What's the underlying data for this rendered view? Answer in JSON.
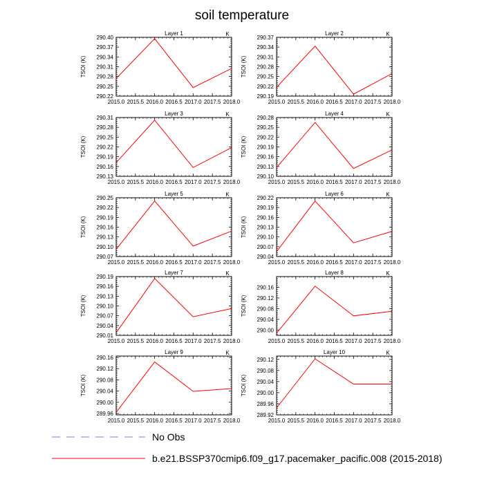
{
  "title": "soil temperature",
  "legend": {
    "no_obs_label": "No Obs",
    "model_label": "b.e21.BSSP370cmip6.f09_g17.pacemaker_pacific.008 (2015-2018)",
    "no_obs_color": "#7b7bdc",
    "model_color": "#ff0000"
  },
  "chart_data": [
    {
      "type": "line",
      "title": "Layer 1",
      "units": "K",
      "ylabel": "TSOI  (K)",
      "x": [
        2015.0,
        2016.0,
        2017.0,
        2018.0
      ],
      "values": [
        290.274,
        290.396,
        290.246,
        290.305
      ],
      "xlim": [
        2015.0,
        2018.0
      ],
      "ylim": [
        290.22,
        290.4
      ],
      "yticks": [
        "290.40",
        "290.37",
        "290.34",
        "290.31",
        "290.28",
        "290.25",
        "290.22"
      ],
      "xticks": [
        "2015.0",
        "2015.5",
        "2016.0",
        "2016.5",
        "2017.0",
        "2017.5",
        "2018.0"
      ]
    },
    {
      "type": "line",
      "title": "Layer 2",
      "units": "K",
      "ylabel": "TSOI  (K)",
      "x": [
        2015.0,
        2016.0,
        2017.0,
        2018.0
      ],
      "values": [
        290.217,
        290.343,
        290.196,
        290.259
      ],
      "xlim": [
        2015.0,
        2018.0
      ],
      "ylim": [
        290.19,
        290.37
      ],
      "yticks": [
        "290.37",
        "290.34",
        "290.31",
        "290.28",
        "290.25",
        "290.22",
        "290.19"
      ],
      "xticks": [
        "2015.0",
        "2015.5",
        "2016.0",
        "2016.5",
        "2017.0",
        "2017.5",
        "2018.0"
      ]
    },
    {
      "type": "line",
      "title": "Layer 3",
      "units": "K",
      "ylabel": "TSOI  (K)",
      "x": [
        2015.0,
        2016.0,
        2017.0,
        2018.0
      ],
      "values": [
        290.172,
        290.302,
        290.157,
        290.218
      ],
      "xlim": [
        2015.0,
        2018.0
      ],
      "ylim": [
        290.13,
        290.31
      ],
      "yticks": [
        "290.31",
        "290.28",
        "290.25",
        "290.22",
        "290.19",
        "290.16",
        "290.13"
      ],
      "xticks": [
        "2015.0",
        "2015.5",
        "2016.0",
        "2016.5",
        "2017.0",
        "2017.5",
        "2018.0"
      ]
    },
    {
      "type": "line",
      "title": "Layer 4",
      "units": "K",
      "ylabel": "TSOI  (K)",
      "x": [
        2015.0,
        2016.0,
        2017.0,
        2018.0
      ],
      "values": [
        290.127,
        290.265,
        290.124,
        290.181
      ],
      "xlim": [
        2015.0,
        2018.0
      ],
      "ylim": [
        290.1,
        290.28
      ],
      "yticks": [
        "290.28",
        "290.25",
        "290.22",
        "290.19",
        "290.16",
        "290.13",
        "290.10"
      ],
      "xticks": [
        "2015.0",
        "2015.5",
        "2016.0",
        "2016.5",
        "2017.0",
        "2017.5",
        "2018.0"
      ]
    },
    {
      "type": "line",
      "title": "Layer 5",
      "units": "K",
      "ylabel": "TSOI  (K)",
      "x": [
        2015.0,
        2016.0,
        2017.0,
        2018.0
      ],
      "values": [
        290.092,
        290.24,
        290.102,
        290.148
      ],
      "xlim": [
        2015.0,
        2018.0
      ],
      "ylim": [
        290.07,
        290.25
      ],
      "yticks": [
        "290.25",
        "290.22",
        "290.19",
        "290.16",
        "290.13",
        "290.10",
        "290.07"
      ],
      "xticks": [
        "2015.0",
        "2015.5",
        "2016.0",
        "2016.5",
        "2017.0",
        "2017.5",
        "2018.0"
      ]
    },
    {
      "type": "line",
      "title": "Layer 6",
      "units": "K",
      "ylabel": "TSOI  (K)",
      "x": [
        2015.0,
        2016.0,
        2017.0,
        2018.0
      ],
      "values": [
        290.055,
        290.21,
        290.082,
        290.117
      ],
      "xlim": [
        2015.0,
        2018.0
      ],
      "ylim": [
        290.04,
        290.22
      ],
      "yticks": [
        "290.22",
        "290.19",
        "290.16",
        "290.13",
        "290.10",
        "290.07",
        "290.04"
      ],
      "xticks": [
        "2015.0",
        "2015.5",
        "2016.0",
        "2016.5",
        "2017.0",
        "2017.5",
        "2018.0"
      ]
    },
    {
      "type": "line",
      "title": "Layer 7",
      "units": "K",
      "ylabel": "TSOI  (K)",
      "x": [
        2015.0,
        2016.0,
        2017.0,
        2018.0
      ],
      "values": [
        290.018,
        290.184,
        290.067,
        290.092
      ],
      "xlim": [
        2015.0,
        2018.0
      ],
      "ylim": [
        290.01,
        290.19
      ],
      "yticks": [
        "290.19",
        "290.16",
        "290.13",
        "290.10",
        "290.07",
        "290.04",
        "290.01"
      ],
      "xticks": [
        "2015.0",
        "2015.5",
        "2016.0",
        "2016.5",
        "2017.0",
        "2017.5",
        "2018.0"
      ]
    },
    {
      "type": "line",
      "title": "Layer 8",
      "units": "K",
      "ylabel": "TSOI  (K)",
      "x": [
        2015.0,
        2016.0,
        2017.0,
        2018.0
      ],
      "values": [
        289.988,
        290.164,
        290.053,
        290.07
      ],
      "xlim": [
        2015.0,
        2018.0
      ],
      "ylim": [
        289.98,
        290.2
      ],
      "yticks": [
        "290.16",
        "290.12",
        "290.08",
        "290.04",
        "290.00"
      ],
      "xticks": [
        "2015.0",
        "2015.5",
        "2016.0",
        "2016.5",
        "2017.0",
        "2017.5",
        "2018.0"
      ]
    },
    {
      "type": "line",
      "title": "Layer 9",
      "units": "K",
      "ylabel": "TSOI  (K)",
      "x": [
        2015.0,
        2016.0,
        2017.0,
        2018.0
      ],
      "values": [
        289.964,
        290.144,
        290.039,
        290.049
      ],
      "xlim": [
        2015.0,
        2018.0
      ],
      "ylim": [
        289.955,
        290.165
      ],
      "yticks": [
        "290.16",
        "290.12",
        "290.08",
        "290.04",
        "290.00",
        "289.96"
      ],
      "xticks": [
        "2015.0",
        "2015.5",
        "2016.0",
        "2016.5",
        "2017.0",
        "2017.5",
        "2018.0"
      ]
    },
    {
      "type": "line",
      "title": "Layer 10",
      "units": "K",
      "ylabel": "TSOI  (K)",
      "x": [
        2015.0,
        2016.0,
        2017.0,
        2018.0
      ],
      "values": [
        289.945,
        290.122,
        290.031,
        290.031
      ],
      "xlim": [
        2015.0,
        2018.0
      ],
      "ylim": [
        289.92,
        290.132
      ],
      "yticks": [
        "290.12",
        "290.08",
        "290.04",
        "290.00",
        "289.96",
        "289.92"
      ],
      "xticks": [
        "2015.0",
        "2015.5",
        "2016.0",
        "2016.5",
        "2017.0",
        "2017.5",
        "2018.0"
      ]
    }
  ]
}
